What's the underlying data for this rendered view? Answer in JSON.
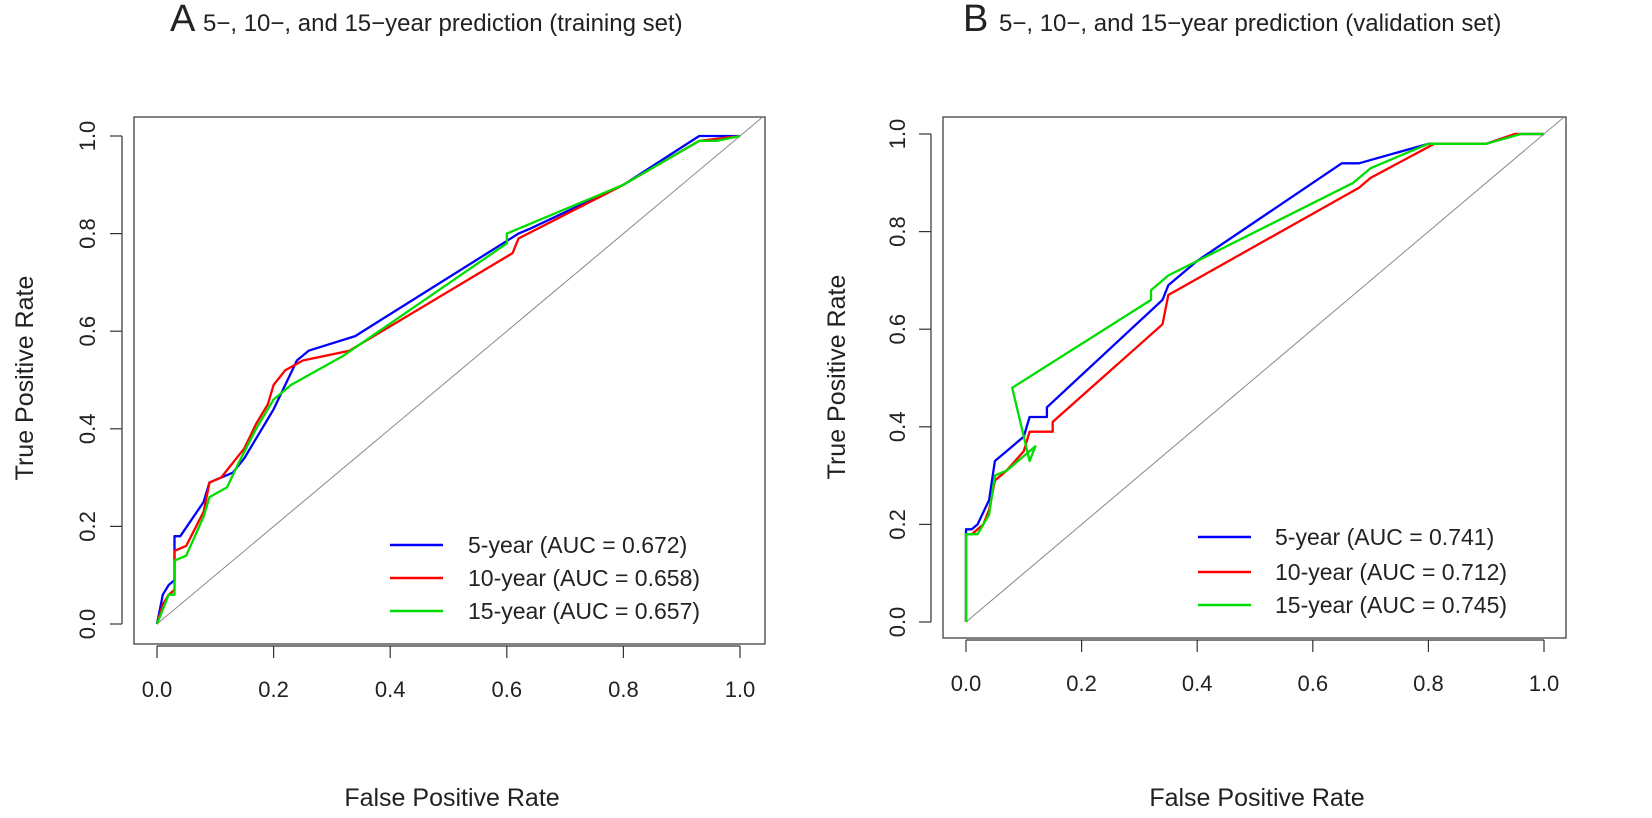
{
  "chart_data": [
    {
      "type": "line",
      "panel_label": "A",
      "title": "5−, 10−, and 15−year prediction (training set)",
      "xlabel": "False Positive Rate",
      "ylabel": "True Positive Rate",
      "xlim": [
        0.0,
        1.0
      ],
      "ylim": [
        0.0,
        1.0
      ],
      "xticks": [
        "0.0",
        "0.2",
        "0.4",
        "0.6",
        "0.8",
        "1.0"
      ],
      "yticks": [
        "0.0",
        "0.2",
        "0.4",
        "0.6",
        "0.8",
        "1.0"
      ],
      "legend_position": "bottom-right",
      "diagonal_reference": true,
      "series": [
        {
          "name": "5-year (AUC = 0.672)",
          "color": "#0000ff",
          "points": [
            [
              0.0,
              0.0
            ],
            [
              0.01,
              0.06
            ],
            [
              0.02,
              0.08
            ],
            [
              0.03,
              0.09
            ],
            [
              0.03,
              0.18
            ],
            [
              0.04,
              0.18
            ],
            [
              0.08,
              0.25
            ],
            [
              0.09,
              0.29
            ],
            [
              0.11,
              0.3
            ],
            [
              0.13,
              0.31
            ],
            [
              0.15,
              0.34
            ],
            [
              0.19,
              0.42
            ],
            [
              0.2,
              0.44
            ],
            [
              0.24,
              0.54
            ],
            [
              0.26,
              0.56
            ],
            [
              0.34,
              0.59
            ],
            [
              0.62,
              0.8
            ],
            [
              0.64,
              0.81
            ],
            [
              0.8,
              0.9
            ],
            [
              0.93,
              1.0
            ],
            [
              0.99,
              1.0
            ],
            [
              1.0,
              1.0
            ]
          ]
        },
        {
          "name": "10-year (AUC = 0.658)",
          "color": "#ff0000",
          "points": [
            [
              0.0,
              0.0
            ],
            [
              0.01,
              0.04
            ],
            [
              0.02,
              0.06
            ],
            [
              0.03,
              0.07
            ],
            [
              0.03,
              0.15
            ],
            [
              0.05,
              0.16
            ],
            [
              0.08,
              0.23
            ],
            [
              0.09,
              0.29
            ],
            [
              0.11,
              0.3
            ],
            [
              0.15,
              0.36
            ],
            [
              0.17,
              0.41
            ],
            [
              0.19,
              0.45
            ],
            [
              0.2,
              0.49
            ],
            [
              0.22,
              0.52
            ],
            [
              0.25,
              0.54
            ],
            [
              0.33,
              0.56
            ],
            [
              0.61,
              0.76
            ],
            [
              0.62,
              0.79
            ],
            [
              0.8,
              0.9
            ],
            [
              0.93,
              0.99
            ],
            [
              1.0,
              1.0
            ]
          ]
        },
        {
          "name": "15-year (AUC = 0.657)",
          "color": "#00dd00",
          "points": [
            [
              0.0,
              0.0
            ],
            [
              0.01,
              0.03
            ],
            [
              0.02,
              0.06
            ],
            [
              0.03,
              0.06
            ],
            [
              0.03,
              0.13
            ],
            [
              0.05,
              0.14
            ],
            [
              0.08,
              0.22
            ],
            [
              0.09,
              0.26
            ],
            [
              0.12,
              0.28
            ],
            [
              0.14,
              0.33
            ],
            [
              0.17,
              0.4
            ],
            [
              0.2,
              0.46
            ],
            [
              0.23,
              0.49
            ],
            [
              0.32,
              0.55
            ],
            [
              0.6,
              0.78
            ],
            [
              0.6,
              0.8
            ],
            [
              0.62,
              0.81
            ],
            [
              0.8,
              0.9
            ],
            [
              0.93,
              0.99
            ],
            [
              0.96,
              0.99
            ],
            [
              1.0,
              1.0
            ]
          ]
        }
      ]
    },
    {
      "type": "line",
      "panel_label": "B",
      "title": "5−, 10−, and 15−year prediction (validation set)",
      "xlabel": "False Positive Rate",
      "ylabel": "True Positive Rate",
      "xlim": [
        0.0,
        1.0
      ],
      "ylim": [
        0.0,
        1.0
      ],
      "xticks": [
        "0.0",
        "0.2",
        "0.4",
        "0.6",
        "0.8",
        "1.0"
      ],
      "yticks": [
        "0.0",
        "0.2",
        "0.4",
        "0.6",
        "0.8",
        "1.0"
      ],
      "legend_position": "bottom-right",
      "diagonal_reference": true,
      "series": [
        {
          "name": "5-year (AUC = 0.741)",
          "color": "#0000ff",
          "points": [
            [
              0.0,
              0.0
            ],
            [
              0.0,
              0.19
            ],
            [
              0.01,
              0.19
            ],
            [
              0.02,
              0.2
            ],
            [
              0.04,
              0.25
            ],
            [
              0.05,
              0.33
            ],
            [
              0.07,
              0.35
            ],
            [
              0.1,
              0.38
            ],
            [
              0.11,
              0.42
            ],
            [
              0.14,
              0.42
            ],
            [
              0.14,
              0.44
            ],
            [
              0.34,
              0.66
            ],
            [
              0.35,
              0.69
            ],
            [
              0.4,
              0.74
            ],
            [
              0.65,
              0.94
            ],
            [
              0.68,
              0.94
            ],
            [
              0.8,
              0.98
            ],
            [
              0.9,
              0.98
            ],
            [
              0.95,
              1.0
            ],
            [
              1.0,
              1.0
            ]
          ]
        },
        {
          "name": "10-year (AUC = 0.712)",
          "color": "#ff0000",
          "points": [
            [
              0.0,
              0.0
            ],
            [
              0.0,
              0.18
            ],
            [
              0.01,
              0.18
            ],
            [
              0.03,
              0.2
            ],
            [
              0.04,
              0.23
            ],
            [
              0.05,
              0.29
            ],
            [
              0.07,
              0.31
            ],
            [
              0.1,
              0.35
            ],
            [
              0.11,
              0.39
            ],
            [
              0.15,
              0.39
            ],
            [
              0.15,
              0.41
            ],
            [
              0.34,
              0.61
            ],
            [
              0.35,
              0.67
            ],
            [
              0.68,
              0.89
            ],
            [
              0.7,
              0.91
            ],
            [
              0.81,
              0.98
            ],
            [
              0.9,
              0.98
            ],
            [
              0.95,
              1.0
            ],
            [
              1.0,
              1.0
            ]
          ]
        },
        {
          "name": "15-year (AUC = 0.745)",
          "color": "#00dd00",
          "points": [
            [
              0.0,
              0.0
            ],
            [
              0.0,
              0.18
            ],
            [
              0.02,
              0.18
            ],
            [
              0.04,
              0.22
            ],
            [
              0.05,
              0.3
            ],
            [
              0.07,
              0.31
            ],
            [
              0.1,
              0.34
            ],
            [
              0.12,
              0.36
            ],
            [
              0.11,
              0.33
            ],
            [
              0.08,
              0.48
            ],
            [
              0.32,
              0.66
            ],
            [
              0.32,
              0.68
            ],
            [
              0.35,
              0.71
            ],
            [
              0.67,
              0.9
            ],
            [
              0.7,
              0.93
            ],
            [
              0.8,
              0.98
            ],
            [
              0.9,
              0.98
            ],
            [
              0.96,
              1.0
            ],
            [
              1.0,
              1.0
            ]
          ]
        }
      ]
    }
  ]
}
